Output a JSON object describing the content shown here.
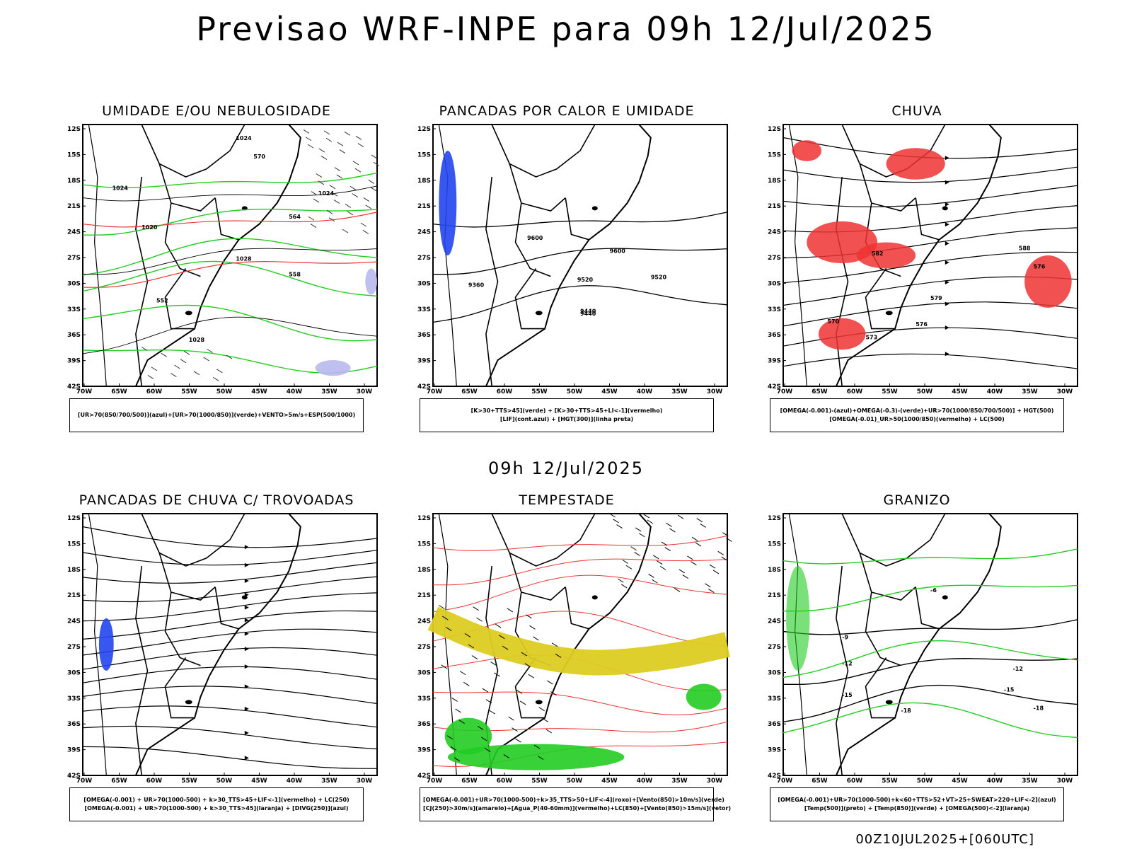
{
  "header": {
    "title": "Previsao WRF-INPE  para 09h 12/Jul/2025"
  },
  "middle": {
    "title": "09h 12/Jul/2025"
  },
  "footer": {
    "text": "00Z10JUL2025+[060UTC]"
  },
  "axes": {
    "lat_ticks": [
      "12S",
      "15S",
      "18S",
      "21S",
      "24S",
      "27S",
      "30S",
      "33S",
      "36S",
      "39S",
      "42S"
    ],
    "lon_ticks": [
      "70W",
      "65W",
      "60W",
      "55W",
      "50W",
      "45W",
      "40W",
      "35W",
      "30W"
    ]
  },
  "panels": [
    {
      "title": "UMIDADE E/OU NEBULOSIDADE",
      "legend": [
        "[UR>70(850/700/500)](azul)+[UR>70(1000/850)](verde)+VENTO>5m/s+ESP(500/1000)"
      ],
      "labels": [
        "1024",
        "1020",
        "1028",
        "1024",
        "1024",
        "1028",
        "570",
        "564",
        "558",
        "552"
      ]
    },
    {
      "title": "PANCADAS POR CALOR E UMIDADE",
      "legend": [
        "[K>30+TTS>45](verde) + [K>30+TTS>45+LI<-1](vermelho)",
        "[LIF](cont.azul) + [HGT(300)](linha preta)"
      ],
      "labels": [
        "9600",
        "9520",
        "9440",
        "9360",
        "9600",
        "9520",
        "9440"
      ]
    },
    {
      "title": "CHUVA",
      "legend": [
        "[OMEGA(-0.001)-(azul)+OMEGA(-0.3)-(verde)+UR>70(1000/850/700/500)] + HGT(500)",
        "[OMEGA(-0.01)_UR>50(1000/850)(vermelho) + LC(500)"
      ],
      "labels": [
        "582",
        "588",
        "576",
        "579",
        "576",
        "573",
        "570"
      ]
    },
    {
      "title": "PANCADAS DE CHUVA C/ TROVOADAS",
      "legend": [
        "[OMEGA(-0.001) + UR>70(1000-500) + k>30_TTS>45+LIF<-1](vermelho) + LC(250)",
        "[OMEGA(-0.001) + UR>70(1000-500) + k>30_TTS>45](laranja) + [DIVG(250)](azul)"
      ],
      "labels": []
    },
    {
      "title": "TEMPESTADE",
      "legend": [
        "[OMEGA(-0.001)+UR>70(1000-500)+k>35_TTS>50+LIF<-4](roxo)+[Vento(850)>10m/s](verde)",
        "[CJ(250)>30m/s](amarelo)+[Agua_P(40-60mm)](vermelho)+LC(850)+[Vento(850)>15m/s](vetor)"
      ],
      "labels": []
    },
    {
      "title": "GRANIZO",
      "legend": [
        "[OMEGA(-0.001)+UR>70(1000-500)+k<60+TTS>52+VT>25+SWEAT>220+LIF<-2](azul)",
        "[Temp(500)](preto) + [Temp(850)](verde) + [OMEGA(500)<-2](laranja)"
      ],
      "labels": [
        "-9",
        "-12",
        "-15",
        "-18",
        "-12",
        "-15",
        "-18",
        "-6"
      ]
    }
  ],
  "colors": {
    "black": "#000000",
    "green": "#22cc22",
    "red": "#ee3333",
    "blue": "#2244ee",
    "yellow": "#ddcc22",
    "lav": "#b8b8ee"
  }
}
